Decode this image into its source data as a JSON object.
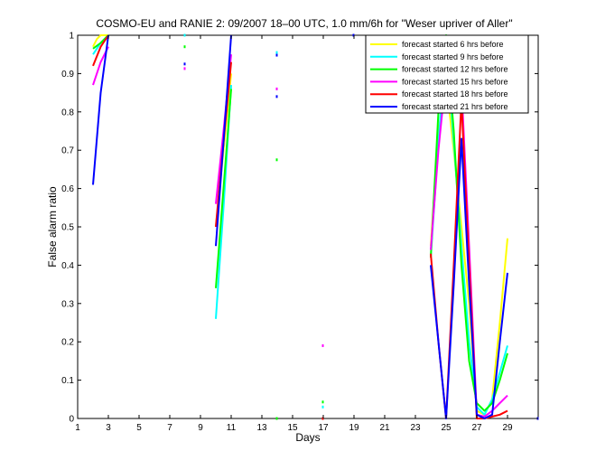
{
  "chart_data": {
    "type": "line",
    "title": "COSMO-EU and RANIE 2: 09/2007 18–00 UTC, 1.0 mm/6h for \"Weser upriver of Aller\"",
    "xlabel": "Days",
    "ylabel": "False alarm ratio",
    "xlim": [
      1,
      31
    ],
    "ylim": [
      0,
      1
    ],
    "xticks": [
      1,
      3,
      5,
      7,
      9,
      11,
      13,
      15,
      17,
      19,
      21,
      23,
      25,
      27,
      29
    ],
    "xtick_labels": [
      "1",
      "3",
      "5",
      "7",
      "9",
      "11",
      "13",
      "15",
      "17",
      "19",
      "21",
      "23",
      "25",
      "27",
      "29"
    ],
    "yticks": [
      0,
      0.1,
      0.2,
      0.3,
      0.4,
      0.5,
      0.6,
      0.7,
      0.8,
      0.9,
      1
    ],
    "ytick_labels": [
      "0",
      "0.1",
      "0.2",
      "0.3",
      "0.4",
      "0.5",
      "0.6",
      "0.7",
      "0.8",
      "0.9",
      "1"
    ],
    "grid": false,
    "legend_position": "top-right",
    "series": [
      {
        "name": "forecast started 6 hrs before",
        "color": "#ffff00",
        "points": [
          [
            2,
            0.97
          ],
          [
            2.25,
            0.99
          ],
          [
            2.5,
            1.0
          ],
          [
            2.75,
            1.0
          ],
          [
            3,
            1.0
          ],
          [
            10,
            0.5
          ],
          [
            10.5,
            0.7
          ],
          [
            11,
            0.9
          ],
          [
            24,
            0.45
          ],
          [
            24.5,
            0.75
          ],
          [
            25,
            0.88
          ],
          [
            25.5,
            0.7
          ],
          [
            26,
            0.5
          ],
          [
            26.5,
            0.3
          ],
          [
            27,
            0.02
          ],
          [
            27.5,
            0.01
          ],
          [
            28,
            0.05
          ],
          [
            28.5,
            0.25
          ],
          [
            29,
            0.47
          ]
        ]
      },
      {
        "name": "forecast started 9 hrs before",
        "color": "#00ffff",
        "points": [
          [
            2,
            0.95
          ],
          [
            2.5,
            0.98
          ],
          [
            3,
            1.0
          ],
          [
            10,
            0.26
          ],
          [
            10.5,
            0.55
          ],
          [
            11,
            0.87
          ],
          [
            24,
            0.42
          ],
          [
            24.5,
            0.72
          ],
          [
            25,
            0.98
          ],
          [
            25.5,
            0.72
          ],
          [
            26,
            0.45
          ],
          [
            26.5,
            0.2
          ],
          [
            27,
            0.03
          ],
          [
            27.5,
            0.01
          ],
          [
            28,
            0.05
          ],
          [
            28.5,
            0.12
          ],
          [
            29,
            0.19
          ]
        ]
      },
      {
        "name": "forecast started 12 hrs before",
        "color": "#00ff00",
        "points": [
          [
            2,
            0.965
          ],
          [
            2.5,
            0.98
          ],
          [
            3,
            1.0
          ],
          [
            10,
            0.34
          ],
          [
            10.5,
            0.6
          ],
          [
            11,
            0.86
          ],
          [
            24,
            0.42
          ],
          [
            24.5,
            0.8
          ],
          [
            25,
            1.0
          ],
          [
            25.5,
            0.75
          ],
          [
            26,
            0.4
          ],
          [
            26.5,
            0.15
          ],
          [
            27,
            0.04
          ],
          [
            27.5,
            0.02
          ],
          [
            28,
            0.04
          ],
          [
            28.5,
            0.1
          ],
          [
            29,
            0.17
          ]
        ]
      },
      {
        "name": "forecast started 15 hrs before",
        "color": "#ff00ff",
        "points": [
          [
            2,
            0.87
          ],
          [
            2.5,
            0.93
          ],
          [
            3,
            0.97
          ],
          [
            10,
            0.56
          ],
          [
            10.5,
            0.75
          ],
          [
            11,
            0.95
          ],
          [
            24,
            0.44
          ],
          [
            24.5,
            0.7
          ],
          [
            25,
            0.9
          ],
          [
            25.5,
            0.8
          ],
          [
            26,
            0.87
          ],
          [
            26.5,
            0.45
          ],
          [
            27,
            0.01
          ],
          [
            27.5,
            0.005
          ],
          [
            28,
            0.02
          ],
          [
            28.5,
            0.04
          ],
          [
            29,
            0.06
          ]
        ]
      },
      {
        "name": "forecast started 18 hrs before",
        "color": "#ff0000",
        "points": [
          [
            2,
            0.92
          ],
          [
            2.5,
            0.97
          ],
          [
            3,
            1.0
          ],
          [
            10,
            0.5
          ],
          [
            10.5,
            0.72
          ],
          [
            11,
            0.93
          ],
          [
            24,
            0.43
          ],
          [
            24.5,
            0.2
          ],
          [
            25,
            0.0
          ],
          [
            25.5,
            0.4
          ],
          [
            26,
            0.83
          ],
          [
            26.5,
            0.4
          ],
          [
            27,
            0.0
          ],
          [
            27.5,
            0.0
          ],
          [
            28,
            0.005
          ],
          [
            28.5,
            0.01
          ],
          [
            29,
            0.02
          ]
        ]
      },
      {
        "name": "forecast started 21 hrs before",
        "color": "#0000ff",
        "points": [
          [
            2,
            0.61
          ],
          [
            2.5,
            0.85
          ],
          [
            3,
            1.0
          ],
          [
            10,
            0.45
          ],
          [
            10.5,
            0.72
          ],
          [
            11,
            1.0
          ],
          [
            24,
            0.4
          ],
          [
            24.5,
            0.2
          ],
          [
            25,
            0.0
          ],
          [
            25.5,
            0.35
          ],
          [
            26,
            0.73
          ],
          [
            26.5,
            0.35
          ],
          [
            27,
            0.01
          ],
          [
            27.5,
            0.0
          ],
          [
            28,
            0.01
          ],
          [
            28.5,
            0.2
          ],
          [
            29,
            0.38
          ]
        ]
      }
    ],
    "isolated_points": [
      {
        "x": 8,
        "y": 1.0,
        "color": "#00ffff"
      },
      {
        "x": 8,
        "y": 0.97,
        "color": "#00ff00"
      },
      {
        "x": 8,
        "y": 0.925,
        "color": "#0000ff"
      },
      {
        "x": 8,
        "y": 0.913,
        "color": "#ff00ff"
      },
      {
        "x": 14,
        "y": 0.955,
        "color": "#00ffff"
      },
      {
        "x": 14,
        "y": 0.948,
        "color": "#0000ff"
      },
      {
        "x": 14,
        "y": 0.86,
        "color": "#ff00ff"
      },
      {
        "x": 14,
        "y": 0.84,
        "color": "#0000ff"
      },
      {
        "x": 14,
        "y": 0.675,
        "color": "#00ff00"
      },
      {
        "x": 14,
        "y": 0.0,
        "color": "#00ff00"
      },
      {
        "x": 17,
        "y": 0.19,
        "color": "#ff00ff"
      },
      {
        "x": 17,
        "y": 0.043,
        "color": "#00ff00"
      },
      {
        "x": 17,
        "y": 0.03,
        "color": "#00ffff"
      },
      {
        "x": 17,
        "y": 0.0,
        "color": "#ff0000"
      },
      {
        "x": 19,
        "y": 1.0,
        "color": "#0000ff"
      },
      {
        "x": 31,
        "y": 0.0,
        "color": "#0000ff"
      }
    ]
  }
}
